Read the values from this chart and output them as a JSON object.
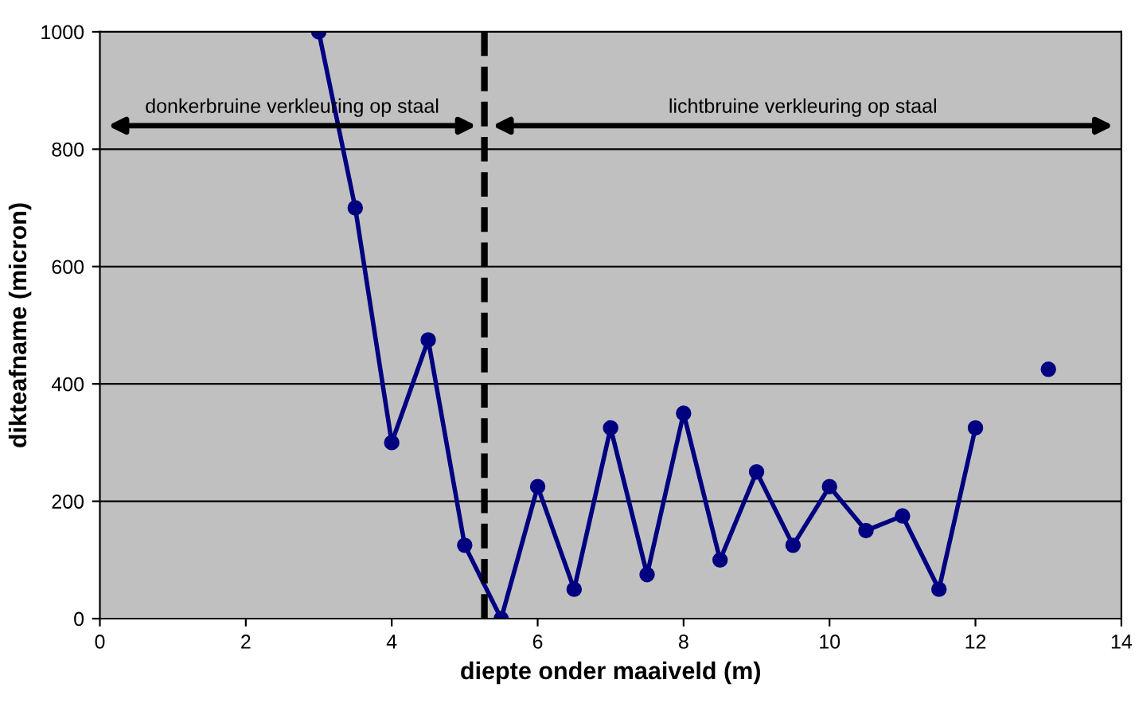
{
  "chart_data": {
    "type": "line",
    "xlabel": "diepte onder maaiveld (m)",
    "ylabel": "dikteafname (micron)",
    "x": [
      3,
      3.5,
      4,
      4.5,
      5,
      5.5,
      6,
      6.5,
      7,
      7.5,
      8,
      8.5,
      9,
      9.5,
      10,
      10.5,
      11,
      11.5,
      12,
      12.5,
      13
    ],
    "series": [
      {
        "color": "#000080",
        "values": [
          1000,
          700,
          300,
          475,
          125,
          0,
          225,
          50,
          325,
          75,
          350,
          100,
          250,
          125,
          225,
          150,
          175,
          50,
          325,
          null,
          425
        ]
      }
    ],
    "xlim": [
      0,
      14
    ],
    "xticks": [
      0,
      2,
      4,
      6,
      8,
      10,
      12,
      14
    ],
    "ylim": [
      0,
      1000
    ],
    "yticks": [
      0,
      200,
      400,
      600,
      800,
      1000
    ],
    "grid": "y",
    "marker": "circle",
    "line_style": "solid",
    "legend": false,
    "ref_lines": [
      {
        "axis": "x",
        "value": 5.27,
        "color": "#000000",
        "line_style": "dashed"
      }
    ],
    "annotations": [
      "donkerbruine verkleuring op staal",
      "lichtbruine verkleuring op staal"
    ]
  }
}
